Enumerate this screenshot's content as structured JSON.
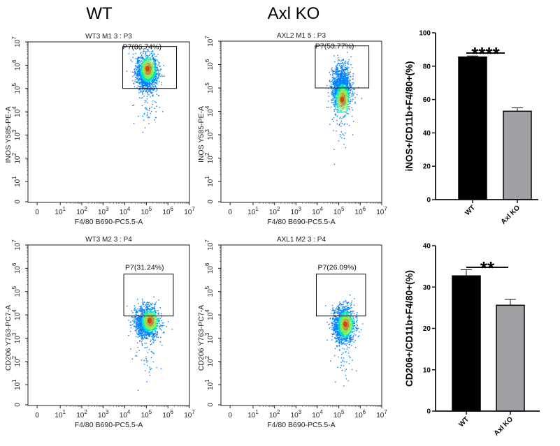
{
  "group_titles": [
    "WT",
    "Axl KO"
  ],
  "chart_data": [
    {
      "type": "scatter",
      "title": "WT3 M1 3 : P3",
      "xlabel": "F4/80 B690-PC5.5-A",
      "ylabel": "INOS Y585-PE-A",
      "scale": "log",
      "xticks": [
        "0",
        "10^1",
        "10^2",
        "10^3",
        "10^4",
        "10^5",
        "10^6",
        "10^7"
      ],
      "yticks": [
        "0",
        "10^1",
        "10^2",
        "10^3",
        "10^4",
        "10^5",
        "10^6",
        "10^7"
      ],
      "gate": {
        "name": "P7",
        "percent": "86.74%",
        "x_range_log": [
          3.9,
          6.4
        ],
        "y_range_log": [
          5.0,
          6.8
        ]
      },
      "population": {
        "center_log": [
          5.0,
          5.7
        ],
        "spread_log": [
          0.45,
          0.7
        ],
        "x_min_log": 3.9,
        "hotspot_log": [
          5.05,
          5.85
        ]
      }
    },
    {
      "type": "scatter",
      "title": "AXL2 M1 5 : P3",
      "xlabel": "F4/80 B690-PC5.5-A",
      "ylabel": "INOS Y585-PE-A",
      "scale": "log",
      "xticks": [
        "0",
        "10^1",
        "10^2",
        "10^3",
        "10^4",
        "10^5",
        "10^6",
        "10^7"
      ],
      "yticks": [
        "0",
        "10^1",
        "10^2",
        "10^3",
        "10^4",
        "10^5",
        "10^6",
        "10^7"
      ],
      "gate": {
        "name": "P7",
        "percent": "53.77%",
        "x_range_log": [
          3.9,
          6.4
        ],
        "y_range_log": [
          5.0,
          6.8
        ]
      },
      "population": {
        "center_log": [
          5.1,
          5.0
        ],
        "spread_log": [
          0.4,
          0.85
        ],
        "x_min_log": 3.9,
        "hotspot_log": [
          5.15,
          4.5
        ]
      }
    },
    {
      "type": "scatter",
      "title": "WT3 M2 3 : P4",
      "xlabel": "F4/80 B690-PC5.5-A",
      "ylabel": "CD206 Y763-PC7-A",
      "scale": "log",
      "xticks": [
        "0",
        "10^1",
        "10^2",
        "10^3",
        "10^4",
        "10^5",
        "10^6",
        "10^7"
      ],
      "yticks": [
        "0",
        "10^1",
        "10^2",
        "10^3",
        "10^4",
        "10^5",
        "10^6",
        "10^7"
      ],
      "gate": {
        "name": "P7",
        "percent": "31.24%",
        "x_range_log": [
          3.95,
          6.25
        ],
        "y_range_log": [
          3.95,
          5.75
        ]
      },
      "population": {
        "center_log": [
          5.0,
          3.7
        ],
        "spread_log": [
          0.5,
          0.6
        ],
        "x_min_log": 3.8,
        "hotspot_log": [
          5.15,
          3.75
        ]
      }
    },
    {
      "type": "scatter",
      "title": "AXL1 M2 3 : P4",
      "xlabel": "F4/80 B690-PC5.5-A",
      "ylabel": "CD206 Y763-PC7-A",
      "scale": "log",
      "xticks": [
        "0",
        "10^1",
        "10^2",
        "10^3",
        "10^4",
        "10^5",
        "10^6",
        "10^7"
      ],
      "yticks": [
        "0",
        "10^1",
        "10^2",
        "10^3",
        "10^4",
        "10^5",
        "10^6",
        "10^7"
      ],
      "gate": {
        "name": "P7",
        "percent": "26.09%",
        "x_range_log": [
          3.95,
          6.25
        ],
        "y_range_log": [
          3.95,
          5.75
        ]
      },
      "population": {
        "center_log": [
          5.2,
          3.6
        ],
        "spread_log": [
          0.45,
          0.7
        ],
        "x_min_log": 3.9,
        "hotspot_log": [
          5.3,
          3.6
        ]
      }
    },
    {
      "type": "bar",
      "categories": [
        "WT",
        "Axl KO"
      ],
      "values": [
        85.5,
        53.0
      ],
      "errors": [
        0.6,
        2.0
      ],
      "colors": [
        "#000000",
        "#a0a0a4"
      ],
      "ylabel": "iNOS+/CD11b+F4/80+(%)",
      "ylim": [
        0,
        100
      ],
      "yticks": [
        0,
        20,
        40,
        60,
        80,
        100
      ],
      "significance": "****"
    },
    {
      "type": "bar",
      "categories": [
        "WT",
        "Axl KO"
      ],
      "values": [
        32.7,
        25.6
      ],
      "errors": [
        1.5,
        1.4
      ],
      "colors": [
        "#000000",
        "#a0a0a4"
      ],
      "ylabel": "CD206+/CD11b+F4/80+(%)",
      "ylim": [
        0,
        40
      ],
      "yticks": [
        0,
        10,
        20,
        30,
        40
      ],
      "significance": "**"
    }
  ]
}
